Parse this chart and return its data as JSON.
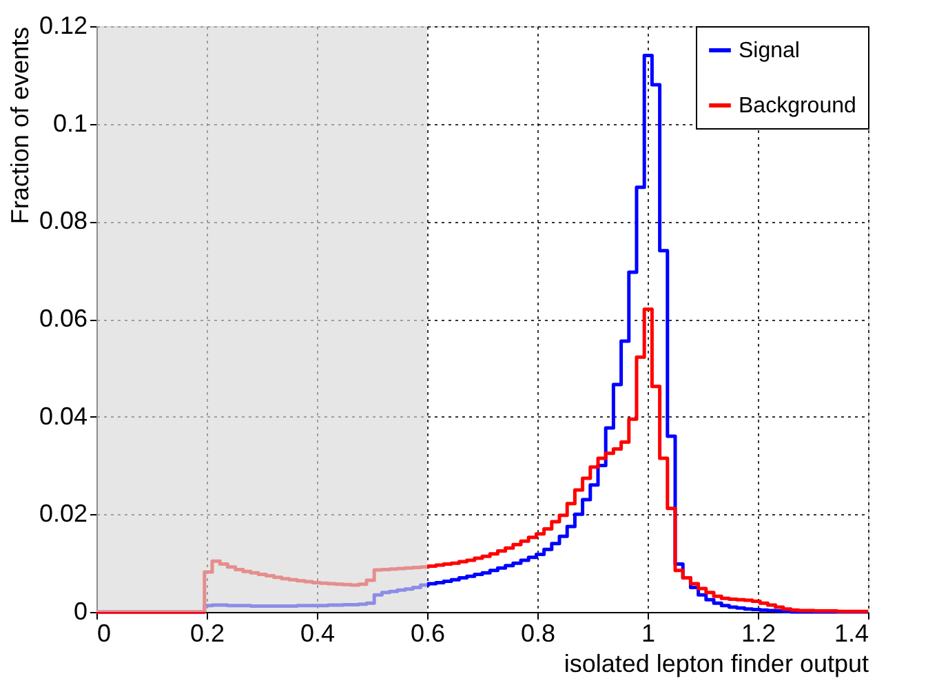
{
  "chart_data": {
    "type": "histogram",
    "xlabel": "isolated lepton finder output",
    "ylabel": "Fraction of events",
    "bins": [
      0,
      0.014,
      0.028,
      0.042,
      0.056,
      0.07,
      0.084,
      0.098,
      0.112,
      0.126,
      0.14,
      0.154,
      0.168,
      0.182,
      0.196,
      0.21,
      0.224,
      0.238,
      0.252,
      0.266,
      0.28,
      0.294,
      0.308,
      0.322,
      0.336,
      0.35,
      0.364,
      0.378,
      0.392,
      0.406,
      0.42,
      0.434,
      0.448,
      0.462,
      0.476,
      0.49,
      0.504,
      0.518,
      0.532,
      0.546,
      0.56,
      0.574,
      0.588,
      0.602,
      0.616,
      0.63,
      0.644,
      0.658,
      0.672,
      0.686,
      0.7,
      0.714,
      0.728,
      0.742,
      0.756,
      0.77,
      0.784,
      0.798,
      0.812,
      0.826,
      0.84,
      0.854,
      0.868,
      0.882,
      0.896,
      0.91,
      0.924,
      0.938,
      0.952,
      0.966,
      0.98,
      0.994,
      1.008,
      1.022,
      1.036,
      1.05,
      1.064,
      1.078,
      1.092,
      1.106,
      1.12,
      1.134,
      1.148,
      1.162,
      1.176,
      1.19,
      1.204,
      1.218,
      1.232,
      1.246,
      1.26,
      1.274,
      1.288,
      1.302,
      1.316,
      1.33,
      1.344,
      1.358,
      1.372,
      1.386,
      1.4
    ],
    "series": [
      {
        "name": "Signal",
        "color": "#0000ff",
        "values": [
          0,
          0,
          0,
          0,
          0,
          0,
          0,
          0,
          0,
          0,
          0,
          0,
          0,
          0,
          0.0013,
          0.0014,
          0.0014,
          0.0013,
          0.0013,
          0.0013,
          0.0012,
          0.0012,
          0.0012,
          0.0012,
          0.0012,
          0.0012,
          0.0013,
          0.0013,
          0.0013,
          0.0013,
          0.0014,
          0.0014,
          0.0015,
          0.0015,
          0.0016,
          0.0018,
          0.0035,
          0.004,
          0.0042,
          0.0045,
          0.0047,
          0.005,
          0.0055,
          0.0058,
          0.006,
          0.0063,
          0.0066,
          0.007,
          0.0073,
          0.0077,
          0.008,
          0.0085,
          0.009,
          0.0095,
          0.01,
          0.0106,
          0.0112,
          0.0118,
          0.0128,
          0.014,
          0.0155,
          0.0175,
          0.02,
          0.023,
          0.026,
          0.03,
          0.0377,
          0.0466,
          0.0555,
          0.0696,
          0.087,
          0.114,
          0.108,
          0.074,
          0.036,
          0.0098,
          0.007,
          0.005,
          0.0035,
          0.0025,
          0.0018,
          0.0013,
          0.001,
          0.0008,
          0.0006,
          0.0005,
          0.0004,
          0.0003,
          0.0002,
          0.0001,
          0,
          0,
          0,
          0,
          0,
          0,
          0,
          0,
          0,
          0
        ]
      },
      {
        "name": "Background",
        "color": "#ff0000",
        "values": [
          0,
          0,
          0,
          0,
          0,
          0,
          0,
          0,
          0,
          0,
          0,
          0,
          0,
          0,
          0.0082,
          0.0104,
          0.0098,
          0.0092,
          0.0087,
          0.0083,
          0.008,
          0.0077,
          0.0074,
          0.0071,
          0.0068,
          0.0066,
          0.0064,
          0.0062,
          0.006,
          0.0059,
          0.0058,
          0.0057,
          0.0056,
          0.0055,
          0.0057,
          0.0065,
          0.0086,
          0.0087,
          0.0088,
          0.0089,
          0.009,
          0.0091,
          0.0092,
          0.0094,
          0.0096,
          0.0098,
          0.01,
          0.0103,
          0.0106,
          0.011,
          0.0114,
          0.0119,
          0.0125,
          0.0131,
          0.0138,
          0.0145,
          0.0153,
          0.016,
          0.017,
          0.0185,
          0.0198,
          0.0222,
          0.025,
          0.0274,
          0.0297,
          0.0315,
          0.0325,
          0.0334,
          0.0348,
          0.0395,
          0.0522,
          0.062,
          0.0462,
          0.0315,
          0.0212,
          0.0085,
          0.007,
          0.0058,
          0.0048,
          0.004,
          0.0032,
          0.0028,
          0.0026,
          0.0025,
          0.0024,
          0.0022,
          0.0018,
          0.0014,
          0.001,
          0.0006,
          0.0004,
          0.0003,
          0.0003,
          0.0002,
          0.0002,
          0.0002,
          0.0001,
          0.0001,
          0.0001,
          0.0001
        ]
      }
    ],
    "xlim": [
      0,
      1.4
    ],
    "xticks": [
      0,
      0.2,
      0.4,
      0.6,
      0.8,
      1,
      1.2,
      1.4
    ],
    "ylim": [
      0,
      0.12
    ],
    "yticks": [
      0,
      0.02,
      0.04,
      0.06,
      0.08,
      0.1,
      0.12
    ],
    "bands": [
      {
        "axis": "x",
        "from": 0,
        "to": 0.6,
        "color": "#d9d9d9"
      }
    ],
    "grid": true,
    "legend": "top right",
    "line_style": "solid"
  }
}
